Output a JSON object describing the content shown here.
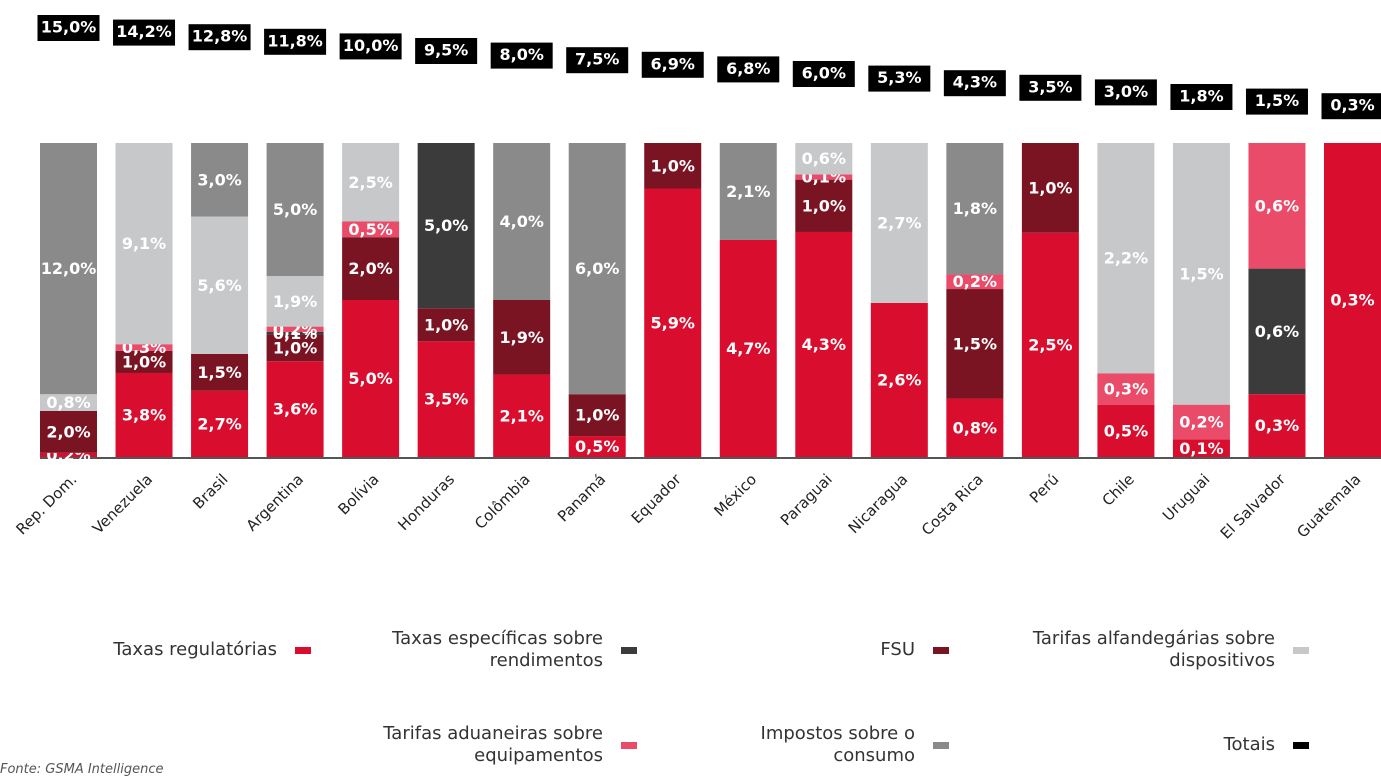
{
  "chart_data": {
    "type": "stacked_bar_100",
    "categories": [
      "Rep. Dom.",
      "Venezuela",
      "Brasil",
      "Argentina",
      "Bolívia",
      "Honduras",
      "Colômbia",
      "Panamá",
      "Equador",
      "México",
      "Paraguai",
      "Nicaragua",
      "Costa Rica",
      "Perú",
      "Chile",
      "Uruguai",
      "El Salvador",
      "Guatemala"
    ],
    "series": [
      {
        "name": "Taxas regulatórias",
        "color": "#d90e2e",
        "values": [
          0.2,
          3.8,
          2.7,
          3.6,
          5.0,
          3.5,
          2.1,
          0.5,
          5.9,
          4.7,
          4.3,
          2.6,
          0.8,
          2.5,
          0.5,
          0.1,
          0.3,
          0.3
        ],
        "value_labels": [
          "0,2%",
          "3,8%",
          "2,7%",
          "3,6%",
          "5,0%",
          "3,5%",
          "2,1%",
          "0,5%",
          "5,9%",
          "4,7%",
          "4,3%",
          "2,6%",
          "0,8%",
          "2,5%",
          "0,5%",
          "0,1%",
          "0,3%",
          "0,3%"
        ]
      },
      {
        "name": "FSU",
        "color": "#7a1423",
        "values": [
          2.0,
          1.0,
          1.5,
          1.0,
          2.0,
          1.0,
          1.9,
          1.0,
          1.0,
          null,
          1.0,
          null,
          1.5,
          1.0,
          null,
          null,
          null,
          null
        ],
        "value_labels": [
          "2,0%",
          "1,0%",
          "1,5%",
          "1,0%",
          "2,0%",
          "1,0%",
          "1,9%",
          "1,0%",
          "1,0%",
          null,
          "1,0%",
          null,
          "1,5%",
          "1,0%",
          null,
          null,
          null,
          null
        ]
      },
      {
        "name": "Taxas específicas sobre rendimentos",
        "color": "#3b3b3b",
        "values": [
          null,
          null,
          null,
          0.1,
          null,
          5.0,
          null,
          null,
          null,
          null,
          null,
          null,
          null,
          null,
          null,
          null,
          0.6,
          null
        ],
        "value_labels": [
          null,
          null,
          null,
          "0,1%",
          null,
          "5,0%",
          null,
          null,
          null,
          null,
          null,
          null,
          null,
          null,
          null,
          null,
          "0,6%",
          null
        ]
      },
      {
        "name": "Tarifas aduaneiras sobre equipamentos",
        "color": "#e94b69",
        "values": [
          null,
          0.3,
          null,
          0.2,
          0.5,
          null,
          null,
          null,
          null,
          null,
          0.1,
          null,
          0.2,
          null,
          0.3,
          0.2,
          0.6,
          null
        ],
        "value_labels": [
          null,
          "0,3%",
          null,
          "0,2%",
          "0,5%",
          null,
          null,
          null,
          null,
          null,
          "0,1%",
          null,
          "0,2%",
          null,
          "0,3%",
          "0,2%",
          "0,6%",
          null
        ]
      },
      {
        "name": "Tarifas alfandegárias sobre dispositivos",
        "color": "#c6c8c9",
        "values": [
          0.8,
          9.1,
          5.6,
          1.9,
          2.5,
          null,
          null,
          null,
          null,
          null,
          0.6,
          2.7,
          null,
          null,
          2.2,
          1.5,
          null,
          null
        ],
        "value_labels": [
          "0,8%",
          "9,1%",
          "5,6%",
          "1,9%",
          "2,5%",
          null,
          null,
          null,
          null,
          null,
          "0,6%",
          "2,7%",
          null,
          null,
          "2,2%",
          "1,5%",
          null,
          null
        ]
      },
      {
        "name": "Impostos sobre o consumo",
        "color": "#8a8a8a",
        "values": [
          12.0,
          null,
          3.0,
          5.0,
          null,
          null,
          4.0,
          6.0,
          null,
          2.1,
          null,
          null,
          1.8,
          null,
          null,
          null,
          null,
          null
        ],
        "value_labels": [
          "12,0%",
          null,
          "3,0%",
          "5,0%",
          null,
          null,
          "4,0%",
          "6,0%",
          null,
          "2,1%",
          null,
          null,
          "1,8%",
          null,
          null,
          null,
          null,
          null
        ]
      },
      {
        "name": "Totais",
        "color": "#000000",
        "values": [
          15.0,
          14.2,
          12.8,
          11.8,
          10.0,
          9.5,
          8.0,
          7.5,
          6.9,
          6.8,
          6.0,
          5.3,
          4.3,
          3.5,
          3.0,
          1.8,
          1.5,
          0.3
        ],
        "value_labels": [
          "15,0%",
          "14,2%",
          "12,8%",
          "11,8%",
          "10,0%",
          "9,5%",
          "8,0%",
          "7,5%",
          "6,9%",
          "6,8%",
          "6,0%",
          "5,3%",
          "4,3%",
          "3,5%",
          "3,0%",
          "1,8%",
          "1,5%",
          "0,3%"
        ],
        "role": "total"
      }
    ],
    "source": "Fonte: GSMA Intelligence"
  }
}
